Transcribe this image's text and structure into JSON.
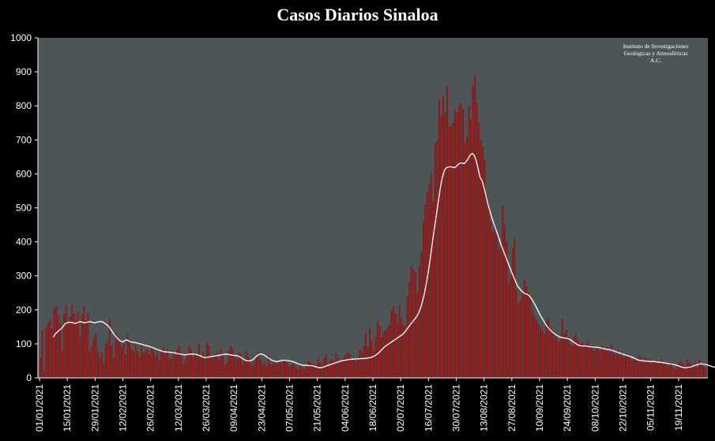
{
  "chart_data": {
    "type": "bar",
    "title": "Casos Diarios Sinaloa",
    "attribution": [
      "Instituto de Investigaciones",
      "Geológicas y Atmosféricas",
      "A.C."
    ],
    "ylim": [
      0,
      1000
    ],
    "y_ticks": [
      "0",
      "100",
      "200",
      "300",
      "400",
      "500",
      "600",
      "700",
      "800",
      "900",
      "1000"
    ],
    "x_ticks": [
      "01/01/2021",
      "15/01/2021",
      "29/01/2021",
      "12/02/2021",
      "26/02/2021",
      "12/03/2021",
      "26/03/2021",
      "09/04/2021",
      "23/04/2021",
      "07/05/2021",
      "21/05/2021",
      "04/06/2021",
      "18/06/2021",
      "02/07/2021",
      "16/07/2021",
      "30/07/2021",
      "13/08/2021",
      "27/08/2021",
      "10/09/2021",
      "24/09/2021",
      "08/10/2021",
      "22/10/2021",
      "05/11/2021",
      "19/11/2021"
    ],
    "grid": false,
    "colors": {
      "background": "#000000",
      "plot_area": "#4d5556",
      "bars": "#8b1a1a",
      "moving_average": "#ffffff",
      "text": "#ffffff"
    },
    "series": [
      {
        "kind": "bar",
        "values": [
          60,
          140,
          20,
          150,
          165,
          175,
          145,
          205,
          210,
          185,
          160,
          80,
          190,
          215,
          160,
          180,
          215,
          190,
          170,
          195,
          120,
          185,
          210,
          170,
          190,
          80,
          95,
          120,
          130,
          80,
          60,
          75,
          45,
          100,
          110,
          175,
          95,
          60,
          130,
          120,
          105,
          90,
          100,
          70,
          130,
          110,
          85,
          75,
          95,
          80,
          60,
          95,
          75,
          80,
          85,
          70,
          90,
          80,
          65,
          75,
          50,
          80,
          90,
          70,
          85,
          60,
          55,
          80,
          65,
          85,
          95,
          75,
          40,
          55,
          70,
          95,
          85,
          60,
          75,
          70,
          100,
          60,
          75,
          55,
          105,
          95,
          60,
          60,
          70,
          75,
          55,
          85,
          70,
          40,
          45,
          80,
          95,
          85,
          60,
          55,
          75,
          70,
          40,
          55,
          80,
          60,
          45,
          35,
          50,
          60,
          75,
          55,
          40,
          45,
          35,
          65,
          40,
          40,
          50,
          40,
          50,
          45,
          45,
          55,
          45,
          35,
          35,
          40,
          40,
          30,
          25,
          40,
          30,
          25,
          35,
          50,
          45,
          40,
          40,
          30,
          55,
          45,
          40,
          60,
          70,
          35,
          50,
          55,
          50,
          75,
          60,
          50,
          45,
          60,
          70,
          75,
          70,
          50,
          55,
          50,
          60,
          85,
          75,
          95,
          135,
          90,
          145,
          110,
          80,
          120,
          170,
          155,
          120,
          135,
          140,
          150,
          155,
          200,
          210,
          190,
          160,
          215,
          175,
          155,
          150,
          240,
          280,
          330,
          320,
          310,
          250,
          330,
          370,
          460,
          510,
          545,
          570,
          600,
          520,
          690,
          700,
          820,
          770,
          830,
          780,
          860,
          740,
          740,
          750,
          790,
          780,
          800,
          810,
          790,
          690,
          710,
          800,
          760,
          860,
          890,
          810,
          750,
          700,
          680,
          640,
          540,
          500,
          460,
          430,
          450,
          420,
          380,
          390,
          505,
          450,
          400,
          280,
          300,
          380,
          410,
          260,
          220,
          230,
          250,
          290,
          270,
          250,
          240,
          200,
          180,
          170,
          160,
          150,
          140,
          130,
          165,
          175,
          150,
          140,
          130,
          120,
          105,
          110,
          175,
          130,
          140,
          120,
          100,
          95,
          120,
          130,
          110,
          100,
          105,
          90,
          100,
          110,
          90,
          95,
          80,
          90,
          85,
          80,
          95,
          85,
          80,
          90,
          75,
          100,
          70,
          70,
          80,
          65,
          75,
          60,
          65,
          70,
          65,
          50,
          55,
          60,
          50,
          65,
          55,
          45,
          60,
          50,
          55,
          45,
          50,
          45,
          50,
          45,
          55,
          40,
          45,
          35,
          40,
          45,
          30,
          25,
          35,
          45,
          50,
          40,
          35,
          55,
          45,
          40,
          35,
          45,
          30,
          55,
          40,
          35,
          30
        ]
      },
      {
        "kind": "line",
        "name": "",
        "values": [
          120,
          130,
          135,
          140,
          145,
          152,
          160,
          162,
          164,
          163,
          162,
          160,
          162,
          165,
          165,
          163,
          162,
          164,
          165,
          165,
          163,
          162,
          164,
          165,
          166,
          164,
          160,
          156,
          150,
          142,
          133,
          125,
          118,
          112,
          108,
          106,
          110,
          112,
          108,
          106,
          105,
          104,
          103,
          101,
          100,
          98,
          96,
          95,
          93,
          91,
          89,
          87,
          84,
          82,
          80,
          78,
          77,
          76,
          76,
          75,
          75,
          74,
          72,
          71,
          70,
          69,
          68,
          68,
          69,
          70,
          70,
          70,
          69,
          67,
          65,
          62,
          60,
          60,
          61,
          62,
          63,
          64,
          65,
          66,
          67,
          68,
          69,
          70,
          69,
          68,
          67,
          66,
          66,
          64,
          62,
          58,
          54,
          51,
          50,
          50,
          52,
          56,
          62,
          67,
          70,
          70,
          68,
          64,
          60,
          56,
          52,
          50,
          48,
          48,
          50,
          51,
          52,
          52,
          51,
          50,
          49,
          47,
          45,
          42,
          40,
          38,
          37,
          37,
          37,
          36,
          36,
          35,
          33,
          31,
          30,
          30,
          32,
          34,
          36,
          38,
          40,
          42,
          44,
          46,
          48,
          50,
          51,
          52,
          53,
          54,
          55,
          55,
          56,
          56,
          56,
          57,
          57,
          57,
          58,
          59,
          60,
          62,
          65,
          69,
          74,
          80,
          86,
          92,
          96,
          100,
          104,
          108,
          112,
          116,
          120,
          124,
          128,
          134,
          142,
          150,
          158,
          165,
          172,
          180,
          190,
          205,
          225,
          250,
          280,
          315,
          355,
          400,
          440,
          480,
          520,
          560,
          590,
          610,
          618,
          620,
          621,
          620,
          618,
          622,
          628,
          632,
          632,
          630,
          636,
          645,
          655,
          660,
          655,
          640,
          615,
          590,
          580,
          560,
          535,
          510,
          490,
          470,
          452,
          436,
          420,
          402,
          385,
          370,
          355,
          340,
          325,
          310,
          296,
          282,
          270,
          262,
          255,
          250,
          247,
          245,
          240,
          232,
          222,
          212,
          200,
          188,
          178,
          168,
          158,
          150,
          143,
          137,
          132,
          128,
          124,
          121,
          119,
          118,
          117,
          116,
          114,
          110,
          106,
          102,
          98,
          95,
          94,
          94,
          94,
          93,
          92,
          91,
          91,
          90,
          90,
          89,
          88,
          86,
          85,
          84,
          83,
          82,
          80,
          78,
          76,
          74,
          72,
          70,
          68,
          66,
          64,
          62,
          60,
          57,
          54,
          52,
          51,
          50,
          50,
          49,
          49,
          48,
          48,
          48,
          47,
          46,
          46,
          45,
          44,
          43,
          42,
          41,
          40,
          39,
          37,
          35,
          33,
          31,
          30,
          30,
          31,
          32,
          34,
          36,
          38,
          40,
          41,
          41,
          40,
          39,
          37,
          35,
          33,
          32,
          31,
          30,
          30,
          29,
          29
        ]
      }
    ]
  }
}
